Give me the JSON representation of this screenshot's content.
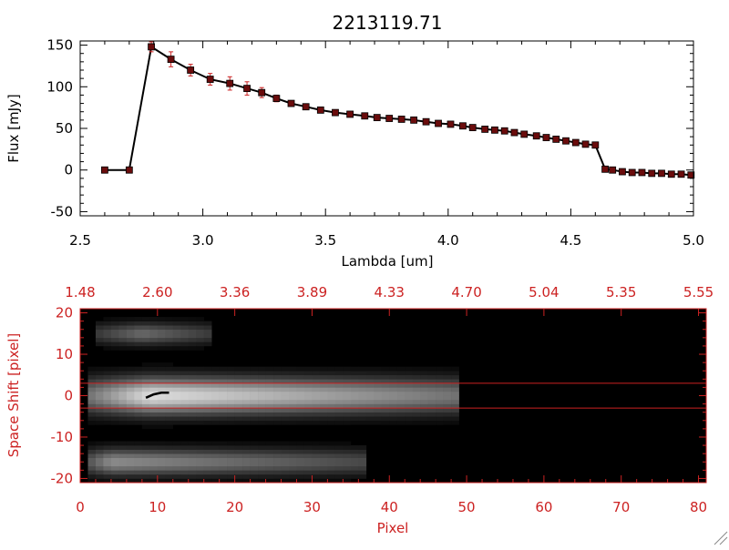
{
  "colors": {
    "spectrum_line": "#000000",
    "marker": "#6a0c0c",
    "error_bar": "#cc2222",
    "bottom_axes": "#cc2222",
    "bottom_bg": "#000000",
    "aperture": "#cc2222"
  },
  "chart_data": [
    {
      "type": "line",
      "title": "2213119.71",
      "xlabel": "Lambda [um]",
      "ylabel": "Flux [mJy]",
      "xlim": [
        2.5,
        5.0
      ],
      "ylim": [
        -55,
        155
      ],
      "xticks": [
        "2.5",
        "3.0",
        "3.5",
        "4.0",
        "4.5",
        "5.0"
      ],
      "xtick_values": [
        2.5,
        3.0,
        3.5,
        4.0,
        4.5,
        5.0
      ],
      "yticks": [
        "-50",
        "0",
        "50",
        "100",
        "150"
      ],
      "ytick_values": [
        -50,
        0,
        50,
        100,
        150
      ],
      "grid": false,
      "series": [
        {
          "x": [
            2.6,
            2.7,
            2.79,
            2.87,
            2.95,
            3.03,
            3.11,
            3.18,
            3.24,
            3.3,
            3.36,
            3.42,
            3.48,
            3.54,
            3.6,
            3.66,
            3.71,
            3.76,
            3.81,
            3.86,
            3.91,
            3.96,
            4.01,
            4.06,
            4.1,
            4.15,
            4.19,
            4.23,
            4.27,
            4.31,
            4.36,
            4.4,
            4.44,
            4.48,
            4.52,
            4.56,
            4.6,
            4.64,
            4.67,
            4.71,
            4.75,
            4.79,
            4.83,
            4.87,
            4.91,
            4.95,
            4.99
          ],
          "y": [
            0,
            0,
            148,
            133,
            120,
            109,
            104,
            98,
            93,
            86,
            80,
            76,
            72,
            69,
            67,
            65,
            63,
            62,
            61,
            60,
            58,
            56,
            55,
            53,
            51,
            49,
            48,
            47,
            45,
            43,
            41,
            39,
            37,
            35,
            33,
            31,
            30,
            1,
            0,
            -2,
            -3,
            -3,
            -4,
            -4,
            -5,
            -5,
            -6
          ],
          "yerr": [
            1.5,
            1.5,
            6,
            9,
            7,
            7,
            8,
            8,
            6,
            4,
            3,
            2.5,
            2.5,
            2,
            2,
            2,
            2,
            2,
            2,
            2,
            2,
            2,
            2,
            2,
            2,
            2,
            2,
            2,
            2,
            2,
            2,
            2,
            2,
            2,
            2,
            2,
            2,
            2,
            2,
            2,
            2,
            2,
            2,
            2,
            2,
            2,
            2
          ]
        }
      ]
    },
    {
      "type": "heatmap",
      "xlabel": "Pixel",
      "ylabel": "Space Shift [pixel]",
      "xlim": [
        0,
        81
      ],
      "ylim": [
        -21,
        21
      ],
      "xticks": [
        "0",
        "10",
        "20",
        "30",
        "40",
        "50",
        "60",
        "70",
        "80"
      ],
      "xtick_values": [
        0,
        10,
        20,
        30,
        40,
        50,
        60,
        70,
        80
      ],
      "yticks": [
        "-20",
        "-10",
        "0",
        "10",
        "20"
      ],
      "ytick_values": [
        -20,
        -10,
        0,
        10,
        20
      ],
      "top_axis_labels": [
        "1.48",
        "2.60",
        "3.36",
        "3.89",
        "4.33",
        "4.70",
        "5.04",
        "5.35",
        "5.55"
      ],
      "top_axis_values": [
        0,
        10,
        20,
        30,
        40,
        50,
        60,
        70,
        80
      ],
      "aperture_lines": [
        3,
        -3
      ],
      "trace": {
        "x": [
          8.5,
          9.5,
          10.5,
          11.5
        ],
        "y": [
          -0.5,
          0.3,
          0.7,
          0.7
        ]
      },
      "emission": [
        {
          "name": "main",
          "center": 0,
          "sigma": 3.0,
          "start": 1,
          "end": 49,
          "peak_x": 9,
          "amp": 0.95
        },
        {
          "name": "upper",
          "center": 15,
          "sigma": 1.8,
          "start": 2,
          "end": 17,
          "peak_x": 8,
          "amp": 0.45
        },
        {
          "name": "lower",
          "center": -16,
          "sigma": 2.2,
          "start": 1,
          "end": 37,
          "peak_x": 4,
          "amp": 0.6
        }
      ]
    }
  ]
}
